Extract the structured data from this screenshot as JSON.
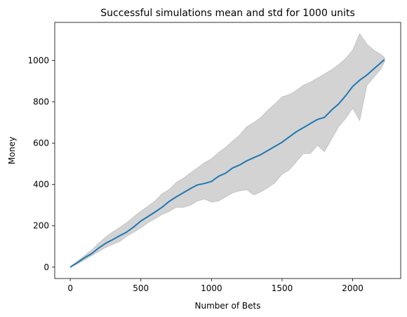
{
  "chart_data": {
    "type": "line",
    "title": "Successful simulations mean and std for 1000 units",
    "xlabel": "Number of Bets",
    "ylabel": "Money",
    "xlim": [
      -110,
      2340
    ],
    "ylim": [
      -55,
      1185
    ],
    "xticks": [
      0,
      500,
      1000,
      1500,
      2000
    ],
    "yticks": [
      0,
      200,
      400,
      600,
      800,
      1000
    ],
    "xtick_labels": [
      "0",
      "500",
      "1000",
      "1500",
      "2000"
    ],
    "ytick_labels": [
      "0",
      "200",
      "400",
      "600",
      "800",
      "1000"
    ],
    "grid": false,
    "legend": "none",
    "colors": {
      "mean_line": "#1f77b4",
      "std_band": "#d3d3d3",
      "std_edge": "#bdbdbd"
    },
    "series": [
      {
        "role": "mean",
        "x": [
          0,
          50,
          100,
          150,
          200,
          250,
          300,
          350,
          400,
          450,
          500,
          550,
          600,
          650,
          700,
          750,
          800,
          850,
          900,
          950,
          1000,
          1050,
          1100,
          1150,
          1200,
          1250,
          1300,
          1350,
          1400,
          1450,
          1500,
          1550,
          1600,
          1650,
          1700,
          1750,
          1800,
          1850,
          1900,
          1950,
          2000,
          2050,
          2100,
          2150,
          2200,
          2225
        ],
        "y": [
          0,
          22,
          45,
          65,
          92,
          115,
          133,
          152,
          170,
          195,
          223,
          245,
          267,
          290,
          318,
          340,
          360,
          380,
          398,
          405,
          415,
          440,
          455,
          480,
          495,
          515,
          530,
          545,
          565,
          585,
          605,
          630,
          655,
          675,
          695,
          715,
          725,
          760,
          790,
          830,
          875,
          905,
          930,
          960,
          990,
          1005
        ]
      },
      {
        "role": "std_upper",
        "x": [
          0,
          50,
          100,
          150,
          200,
          250,
          300,
          350,
          400,
          450,
          500,
          550,
          600,
          650,
          700,
          750,
          800,
          850,
          900,
          950,
          1000,
          1050,
          1100,
          1150,
          1200,
          1250,
          1300,
          1350,
          1400,
          1450,
          1500,
          1550,
          1600,
          1650,
          1700,
          1750,
          1800,
          1850,
          1900,
          1950,
          2000,
          2050,
          2100,
          2150,
          2200,
          2225
        ],
        "y": [
          2,
          28,
          55,
          82,
          115,
          145,
          170,
          192,
          215,
          245,
          270,
          295,
          320,
          355,
          375,
          410,
          430,
          455,
          480,
          505,
          525,
          555,
          580,
          610,
          640,
          680,
          700,
          725,
          760,
          790,
          825,
          835,
          855,
          880,
          895,
          915,
          935,
          955,
          980,
          1010,
          1050,
          1130,
          1080,
          1050,
          1030,
          1015
        ]
      },
      {
        "role": "std_lower",
        "x": [
          0,
          50,
          100,
          150,
          200,
          250,
          300,
          350,
          400,
          450,
          500,
          550,
          600,
          650,
          700,
          750,
          800,
          850,
          900,
          950,
          1000,
          1050,
          1100,
          1150,
          1200,
          1250,
          1300,
          1350,
          1400,
          1450,
          1500,
          1550,
          1600,
          1650,
          1700,
          1750,
          1800,
          1850,
          1900,
          1950,
          2000,
          2050,
          2100,
          2150,
          2200,
          2225
        ],
        "y": [
          0,
          15,
          35,
          55,
          75,
          95,
          110,
          125,
          150,
          170,
          190,
          215,
          235,
          255,
          270,
          290,
          290,
          300,
          320,
          330,
          315,
          320,
          340,
          360,
          370,
          375,
          350,
          365,
          385,
          410,
          450,
          470,
          510,
          550,
          550,
          590,
          560,
          620,
          680,
          720,
          770,
          710,
          880,
          920,
          960,
          995
        ]
      }
    ]
  }
}
